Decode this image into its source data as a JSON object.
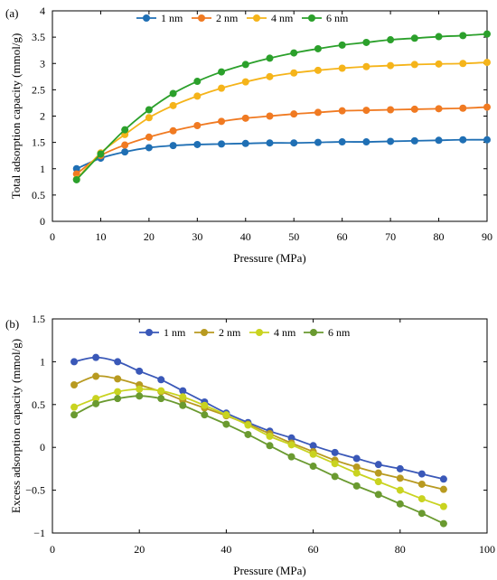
{
  "chart_data": [
    {
      "type": "line",
      "panel_label": "(a)",
      "xlabel": "Pressure (MPa)",
      "ylabel": "Total adsorption capacity (mmol/g)",
      "xlim": [
        0,
        90
      ],
      "ylim": [
        0,
        4
      ],
      "xticks": [
        0,
        10,
        20,
        30,
        40,
        50,
        60,
        70,
        80,
        90
      ],
      "yticks": [
        0,
        0.5,
        1,
        1.5,
        2,
        2.5,
        3,
        3.5,
        4
      ],
      "ytick_labels": [
        "0",
        "0.5",
        "1",
        "1.5",
        "2",
        "2.5",
        "3",
        "3.5",
        "4"
      ],
      "grid": false,
      "legend_position": "top",
      "x": [
        5,
        10,
        15,
        20,
        25,
        30,
        35,
        40,
        45,
        50,
        55,
        60,
        65,
        70,
        75,
        80,
        85,
        90
      ],
      "series": [
        {
          "name": "1 nm",
          "color": "#1f6fb4",
          "values": [
            1.0,
            1.2,
            1.32,
            1.4,
            1.44,
            1.46,
            1.47,
            1.48,
            1.49,
            1.49,
            1.5,
            1.51,
            1.51,
            1.52,
            1.53,
            1.54,
            1.55,
            1.55
          ]
        },
        {
          "name": "2 nm",
          "color": "#f07a22",
          "values": [
            0.9,
            1.25,
            1.45,
            1.6,
            1.72,
            1.82,
            1.9,
            1.96,
            2.0,
            2.04,
            2.07,
            2.1,
            2.11,
            2.12,
            2.13,
            2.14,
            2.15,
            2.17
          ]
        },
        {
          "name": "4 nm",
          "color": "#f5b41a",
          "values": [
            0.8,
            1.3,
            1.65,
            1.97,
            2.2,
            2.38,
            2.53,
            2.65,
            2.75,
            2.82,
            2.87,
            2.91,
            2.94,
            2.96,
            2.98,
            2.99,
            3.0,
            3.02
          ]
        },
        {
          "name": "6 nm",
          "color": "#2ba02b",
          "values": [
            0.79,
            1.28,
            1.74,
            2.12,
            2.43,
            2.66,
            2.84,
            2.98,
            3.1,
            3.2,
            3.28,
            3.35,
            3.4,
            3.45,
            3.48,
            3.51,
            3.53,
            3.56
          ]
        }
      ]
    },
    {
      "type": "line",
      "panel_label": "(b)",
      "xlabel": "Pressure (MPa)",
      "ylabel": "Excess adsorption capacity (mmol/g)",
      "xlim": [
        0,
        100
      ],
      "ylim": [
        -1,
        1.5
      ],
      "xticks": [
        0,
        20,
        40,
        60,
        80,
        100
      ],
      "yticks": [
        -1,
        -0.5,
        0,
        0.5,
        1,
        1.5
      ],
      "ytick_labels": [
        "−1",
        "−0.5",
        "0",
        "0.5",
        "1",
        "1.5"
      ],
      "grid": false,
      "legend_position": "top",
      "x": [
        5,
        10,
        15,
        20,
        25,
        30,
        35,
        40,
        45,
        50,
        55,
        60,
        65,
        70,
        75,
        80,
        85,
        90
      ],
      "series": [
        {
          "name": "1 nm",
          "color": "#3a58b8",
          "values": [
            1.0,
            1.05,
            1.0,
            0.89,
            0.79,
            0.66,
            0.53,
            0.4,
            0.29,
            0.19,
            0.11,
            0.02,
            -0.06,
            -0.13,
            -0.2,
            -0.25,
            -0.31,
            -0.37
          ]
        },
        {
          "name": "2 nm",
          "color": "#b89a20",
          "values": [
            0.73,
            0.83,
            0.8,
            0.73,
            0.65,
            0.55,
            0.46,
            0.37,
            0.27,
            0.16,
            0.05,
            -0.05,
            -0.15,
            -0.23,
            -0.3,
            -0.36,
            -0.43,
            -0.49
          ]
        },
        {
          "name": "4 nm",
          "color": "#c9d320",
          "values": [
            0.47,
            0.57,
            0.65,
            0.68,
            0.66,
            0.59,
            0.49,
            0.38,
            0.26,
            0.13,
            0.03,
            -0.08,
            -0.19,
            -0.3,
            -0.4,
            -0.5,
            -0.6,
            -0.69
          ]
        },
        {
          "name": "6 nm",
          "color": "#6a9a30",
          "values": [
            0.38,
            0.51,
            0.57,
            0.6,
            0.57,
            0.49,
            0.38,
            0.27,
            0.15,
            0.02,
            -0.11,
            -0.22,
            -0.34,
            -0.45,
            -0.55,
            -0.66,
            -0.77,
            -0.89
          ]
        }
      ]
    }
  ]
}
